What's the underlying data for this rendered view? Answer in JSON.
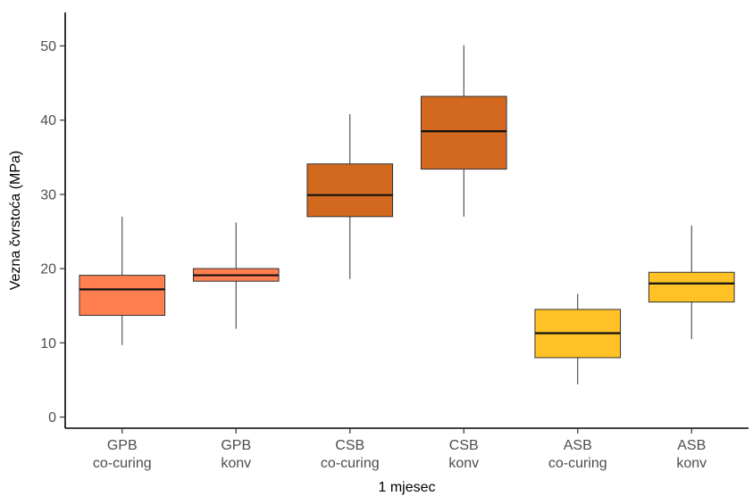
{
  "chart_data": {
    "type": "boxplot",
    "xlabel": "1 mjesec",
    "ylabel": "Vezna čvrstoća (MPa)",
    "ylim": [
      -1.5,
      54.5
    ],
    "yticks": [
      0,
      10,
      20,
      30,
      40,
      50
    ],
    "grid": false,
    "legend": "none",
    "categories": [
      {
        "line1": "GPB",
        "line2": "co-curing"
      },
      {
        "line1": "GPB",
        "line2": "konv"
      },
      {
        "line1": "CSB",
        "line2": "co-curing"
      },
      {
        "line1": "CSB",
        "line2": "konv"
      },
      {
        "line1": "ASB",
        "line2": "co-curing"
      },
      {
        "line1": "ASB",
        "line2": "konv"
      }
    ],
    "boxes": [
      {
        "min": 9.7,
        "q1": 13.7,
        "median": 17.2,
        "q3": 19.1,
        "max": 27.0,
        "color": "#ff7f50"
      },
      {
        "min": 11.9,
        "q1": 18.3,
        "median": 19.1,
        "q3": 20.0,
        "max": 26.2,
        "color": "#ff7f50"
      },
      {
        "min": 18.6,
        "q1": 27.0,
        "median": 29.9,
        "q3": 34.1,
        "max": 40.8,
        "color": "#d2691e"
      },
      {
        "min": 27.0,
        "q1": 33.4,
        "median": 38.5,
        "q3": 43.2,
        "max": 50.1,
        "color": "#d2691e"
      },
      {
        "min": 4.4,
        "q1": 8.0,
        "median": 11.3,
        "q3": 14.5,
        "max": 16.6,
        "color": "#ffc125"
      },
      {
        "min": 10.5,
        "q1": 15.5,
        "median": 18.0,
        "q3": 19.5,
        "max": 25.8,
        "color": "#ffc125"
      }
    ]
  }
}
